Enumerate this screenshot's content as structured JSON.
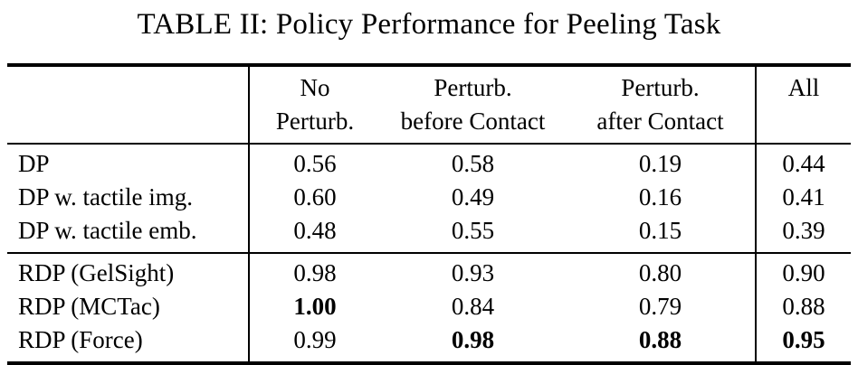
{
  "title": "TABLE II: Policy Performance for Peeling Task",
  "table": {
    "columns": [
      {
        "line1": "",
        "line2": ""
      },
      {
        "line1": "No",
        "line2": "Perturb."
      },
      {
        "line1": "Perturb.",
        "line2": "before Contact"
      },
      {
        "line1": "Perturb.",
        "line2": "after Contact"
      },
      {
        "line1": "All",
        "line2": ""
      }
    ],
    "sections": [
      {
        "rows": [
          {
            "label": "DP",
            "cells": [
              {
                "v": "0.56",
                "b": false
              },
              {
                "v": "0.58",
                "b": false
              },
              {
                "v": "0.19",
                "b": false
              },
              {
                "v": "0.44",
                "b": false
              }
            ]
          },
          {
            "label": "DP w. tactile img.",
            "cells": [
              {
                "v": "0.60",
                "b": false
              },
              {
                "v": "0.49",
                "b": false
              },
              {
                "v": "0.16",
                "b": false
              },
              {
                "v": "0.41",
                "b": false
              }
            ]
          },
          {
            "label": "DP w. tactile emb.",
            "cells": [
              {
                "v": "0.48",
                "b": false
              },
              {
                "v": "0.55",
                "b": false
              },
              {
                "v": "0.15",
                "b": false
              },
              {
                "v": "0.39",
                "b": false
              }
            ]
          }
        ]
      },
      {
        "rows": [
          {
            "label": "RDP (GelSight)",
            "cells": [
              {
                "v": "0.98",
                "b": false
              },
              {
                "v": "0.93",
                "b": false
              },
              {
                "v": "0.80",
                "b": false
              },
              {
                "v": "0.90",
                "b": false
              }
            ]
          },
          {
            "label": "RDP (MCTac)",
            "cells": [
              {
                "v": "1.00",
                "b": true
              },
              {
                "v": "0.84",
                "b": false
              },
              {
                "v": "0.79",
                "b": false
              },
              {
                "v": "0.88",
                "b": false
              }
            ]
          },
          {
            "label": "RDP (Force)",
            "cells": [
              {
                "v": "0.99",
                "b": false
              },
              {
                "v": "0.98",
                "b": true
              },
              {
                "v": "0.88",
                "b": true
              },
              {
                "v": "0.95",
                "b": true
              }
            ]
          }
        ]
      }
    ]
  }
}
